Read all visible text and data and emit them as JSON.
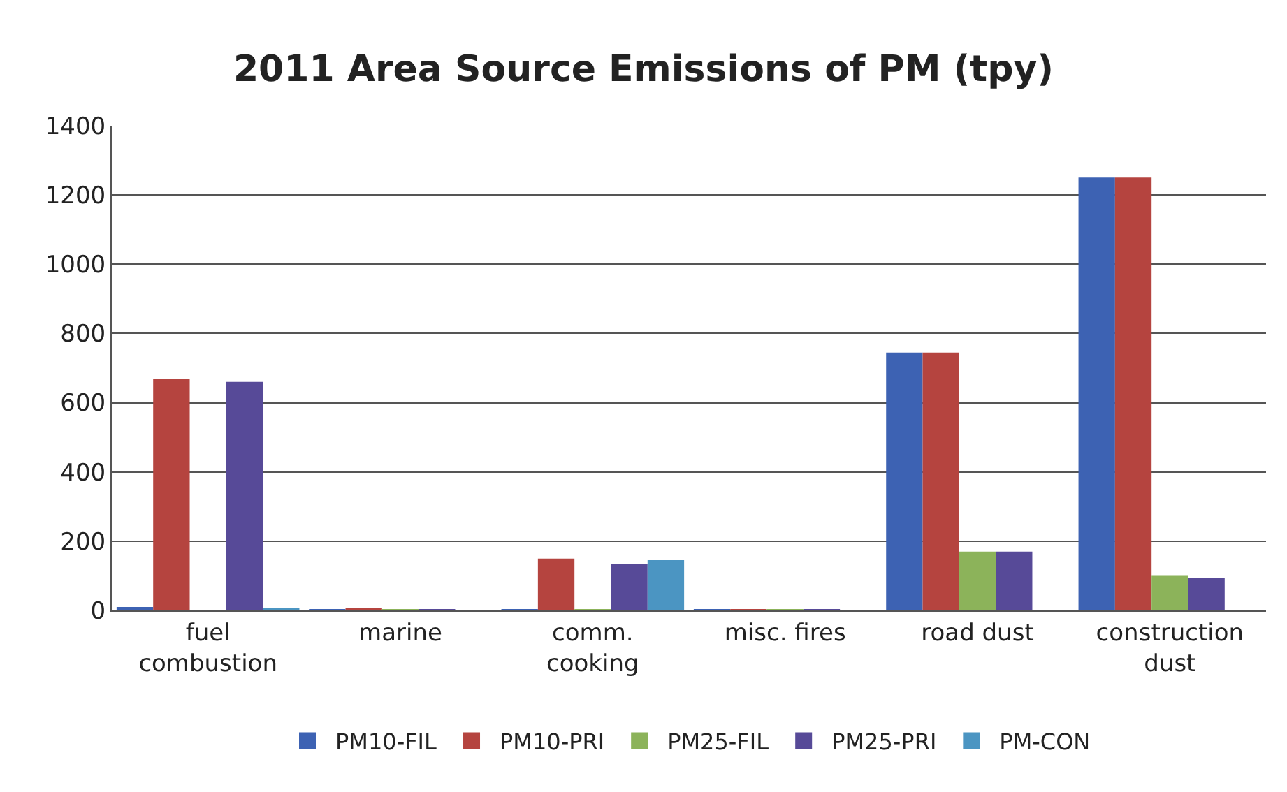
{
  "chart_data": {
    "type": "bar",
    "title": "2011 Area Source Emissions of PM (tpy)",
    "categories": [
      "fuel combustion",
      "marine",
      "comm. cooking",
      "misc. fires",
      "road dust",
      "construction dust"
    ],
    "series": [
      {
        "name": "PM10-FIL",
        "color": "#3d62b3",
        "values": [
          10,
          1,
          3,
          2,
          745,
          1250
        ]
      },
      {
        "name": "PM10-PRI",
        "color": "#b5443f",
        "values": [
          670,
          6,
          150,
          3,
          745,
          1250
        ]
      },
      {
        "name": "PM25-FIL",
        "color": "#8cb35a",
        "values": [
          0,
          1,
          1,
          1,
          170,
          100
        ]
      },
      {
        "name": "PM25-PRI",
        "color": "#574a98",
        "values": [
          660,
          4,
          135,
          2,
          170,
          95
        ]
      },
      {
        "name": "PM-CON",
        "color": "#4b95c2",
        "values": [
          8,
          0,
          145,
          0,
          0,
          0
        ]
      }
    ],
    "ylim": [
      0,
      1400
    ],
    "yticks": [
      0,
      200,
      400,
      600,
      800,
      1000,
      1200,
      1400
    ],
    "grid": "y",
    "legend": "bottom"
  }
}
